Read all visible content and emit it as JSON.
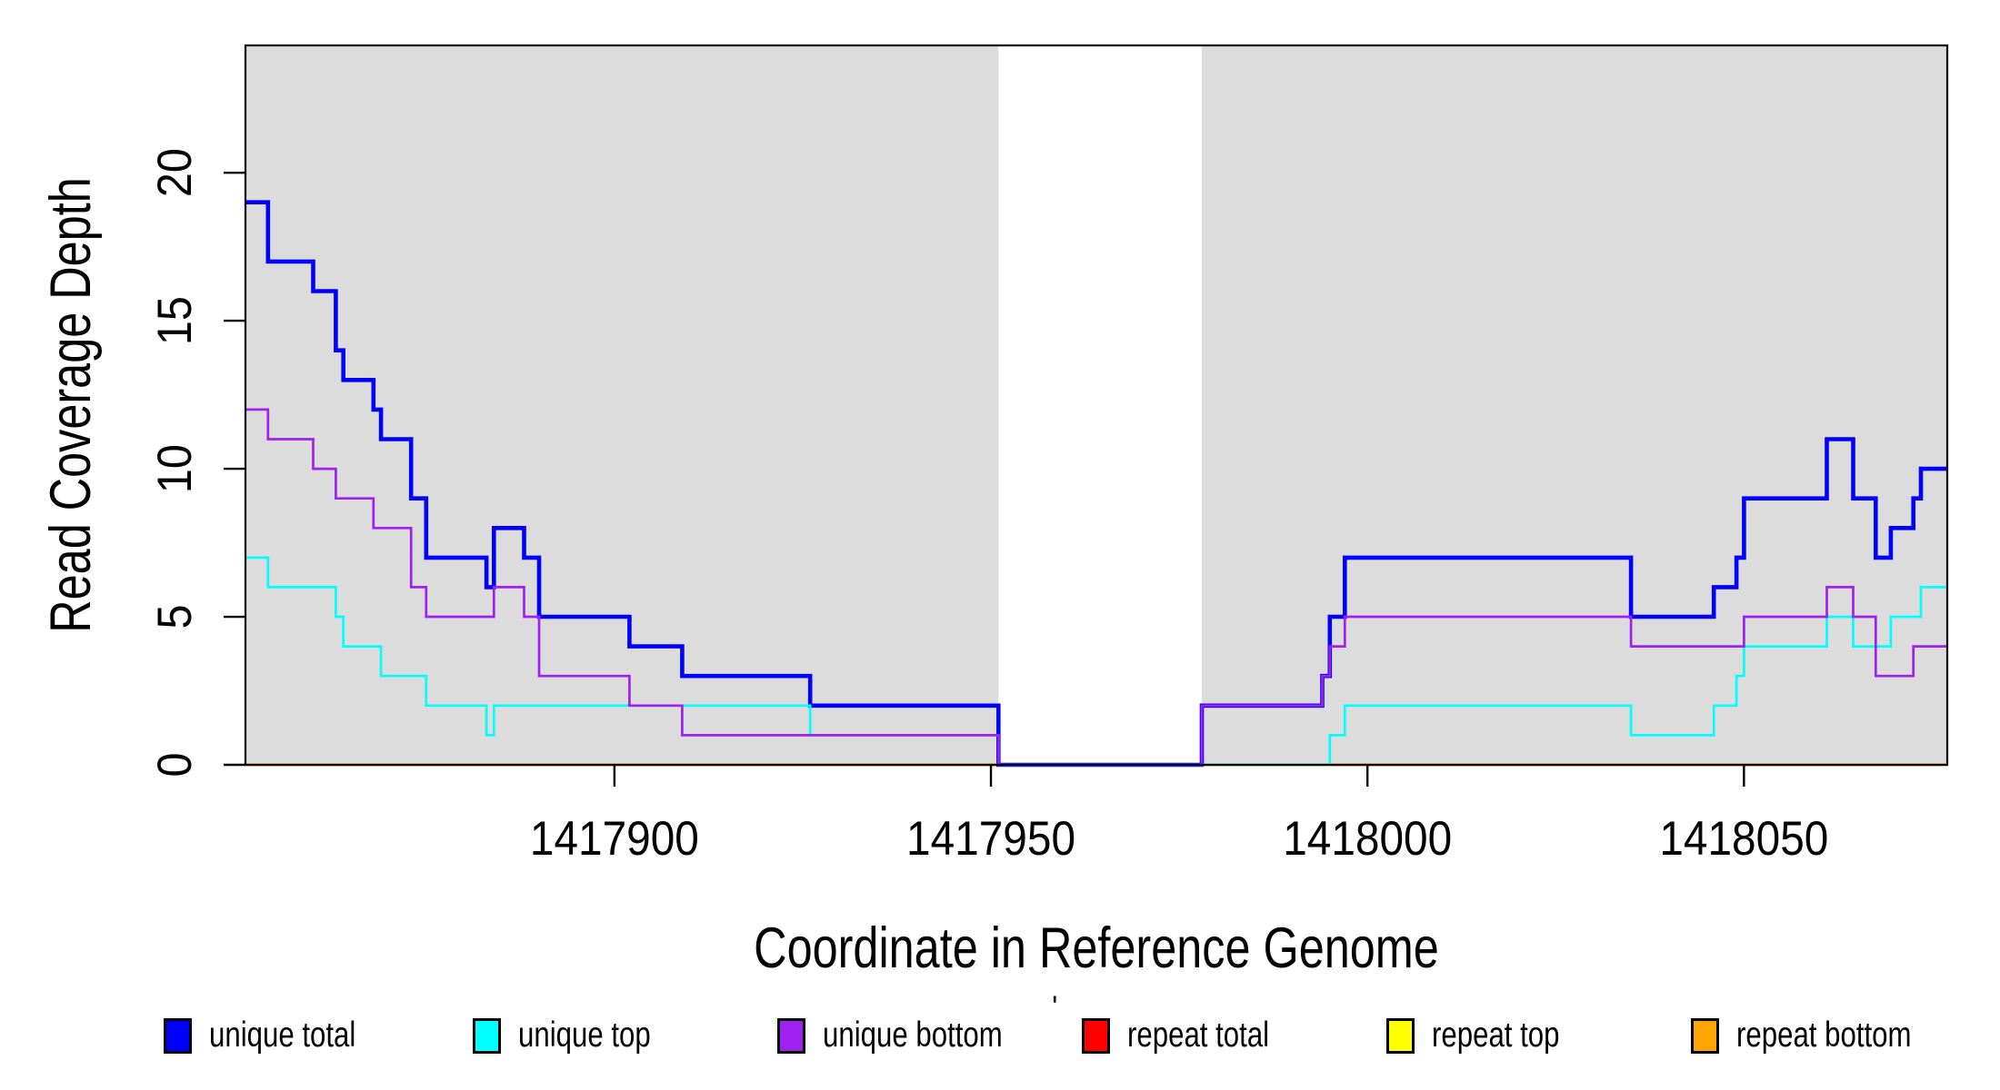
{
  "figure_title": "",
  "chart_data": {
    "type": "line",
    "subtype": "step",
    "title": "",
    "xlabel": "Coordinate in Reference Genome",
    "ylabel": "Read Coverage Depth",
    "xlim": [
      1417851,
      1418077
    ],
    "ylim": [
      0,
      24.3
    ],
    "x_ticks": [
      1417900,
      1417950,
      1418000,
      1418050
    ],
    "y_ticks": [
      0,
      5,
      10,
      15,
      20
    ],
    "grid": false,
    "axis_color": "#000000",
    "plot_bg": "#ffffff",
    "shaded_regions": {
      "color": "#dcdcdc",
      "note": "gray mappability bands; white gap between them",
      "ranges": [
        [
          1417851,
          1417951
        ],
        [
          1417978,
          1418077
        ]
      ]
    },
    "legend_position": "bottom",
    "draw_order": [
      "repeat total",
      "repeat top",
      "repeat bottom",
      "unique total",
      "unique top",
      "unique bottom"
    ],
    "series": [
      {
        "name": "unique total",
        "color": "#0000ff",
        "line_width": 4.6,
        "steps": [
          [
            1417851,
            19
          ],
          [
            1417854,
            17
          ],
          [
            1417860,
            16
          ],
          [
            1417863,
            14
          ],
          [
            1417864,
            13
          ],
          [
            1417868,
            12
          ],
          [
            1417869,
            11
          ],
          [
            1417873,
            9
          ],
          [
            1417875,
            7
          ],
          [
            1417883,
            6
          ],
          [
            1417884,
            8
          ],
          [
            1417888,
            7
          ],
          [
            1417890,
            5
          ],
          [
            1417902,
            4
          ],
          [
            1417909,
            3
          ],
          [
            1417926,
            2
          ],
          [
            1417951,
            0
          ],
          [
            1417978,
            2
          ],
          [
            1417994,
            3
          ],
          [
            1417995,
            5
          ],
          [
            1417997,
            7
          ],
          [
            1418035,
            5
          ],
          [
            1418046,
            6
          ],
          [
            1418049,
            7
          ],
          [
            1418050,
            9
          ],
          [
            1418061,
            11
          ],
          [
            1418064.5,
            9
          ],
          [
            1418067.5,
            7
          ],
          [
            1418069.5,
            8
          ],
          [
            1418072.5,
            9
          ],
          [
            1418073.5,
            10
          ]
        ]
      },
      {
        "name": "unique top",
        "color": "#00ffff",
        "line_width": 2.7,
        "steps": [
          [
            1417851,
            7
          ],
          [
            1417854,
            6
          ],
          [
            1417863,
            5
          ],
          [
            1417864,
            4
          ],
          [
            1417869,
            3
          ],
          [
            1417875,
            2
          ],
          [
            1417883,
            1
          ],
          [
            1417884,
            2
          ],
          [
            1417926,
            1
          ],
          [
            1417951,
            0
          ],
          [
            1417995,
            1
          ],
          [
            1417997,
            2
          ],
          [
            1418035,
            1
          ],
          [
            1418046,
            2
          ],
          [
            1418049,
            3
          ],
          [
            1418050,
            4
          ],
          [
            1418061,
            5
          ],
          [
            1418064.5,
            4
          ],
          [
            1418069.5,
            5
          ],
          [
            1418073.5,
            6
          ]
        ]
      },
      {
        "name": "unique bottom",
        "color": "#a020f0",
        "line_width": 2.7,
        "steps": [
          [
            1417851,
            12
          ],
          [
            1417854,
            11
          ],
          [
            1417860,
            10
          ],
          [
            1417863,
            9
          ],
          [
            1417868,
            8
          ],
          [
            1417873,
            6
          ],
          [
            1417875,
            5
          ],
          [
            1417884,
            6
          ],
          [
            1417888,
            5
          ],
          [
            1417890,
            3
          ],
          [
            1417902,
            2
          ],
          [
            1417909,
            1
          ],
          [
            1417951,
            0
          ],
          [
            1417978,
            2
          ],
          [
            1417994,
            3
          ],
          [
            1417995,
            4
          ],
          [
            1417997,
            5
          ],
          [
            1418035,
            4
          ],
          [
            1418050,
            5
          ],
          [
            1418061,
            6
          ],
          [
            1418064.5,
            5
          ],
          [
            1418067.5,
            3
          ],
          [
            1418072.5,
            4
          ]
        ]
      },
      {
        "name": "repeat total",
        "color": "#ff0000",
        "line_width": 2.2,
        "steps": [
          [
            1417851,
            0
          ]
        ]
      },
      {
        "name": "repeat top",
        "color": "#ffff00",
        "line_width": 2.2,
        "steps": [
          [
            1417851,
            0
          ]
        ]
      },
      {
        "name": "repeat bottom",
        "color": "#ffa500",
        "line_width": 3.2,
        "steps": [
          [
            1417851,
            0
          ]
        ]
      }
    ]
  },
  "legend": {
    "items": [
      {
        "label": "unique total",
        "color": "#0000ff"
      },
      {
        "label": "unique top",
        "color": "#00ffff"
      },
      {
        "label": "unique bottom",
        "color": "#a020f0"
      },
      {
        "label": "repeat total",
        "color": "#ff0000"
      },
      {
        "label": "repeat top",
        "color": "#ffff00"
      },
      {
        "label": "repeat bottom",
        "color": "#ffa500"
      }
    ]
  },
  "artifacts": {
    "stray_mark": {
      "glyph": "'"
    }
  }
}
